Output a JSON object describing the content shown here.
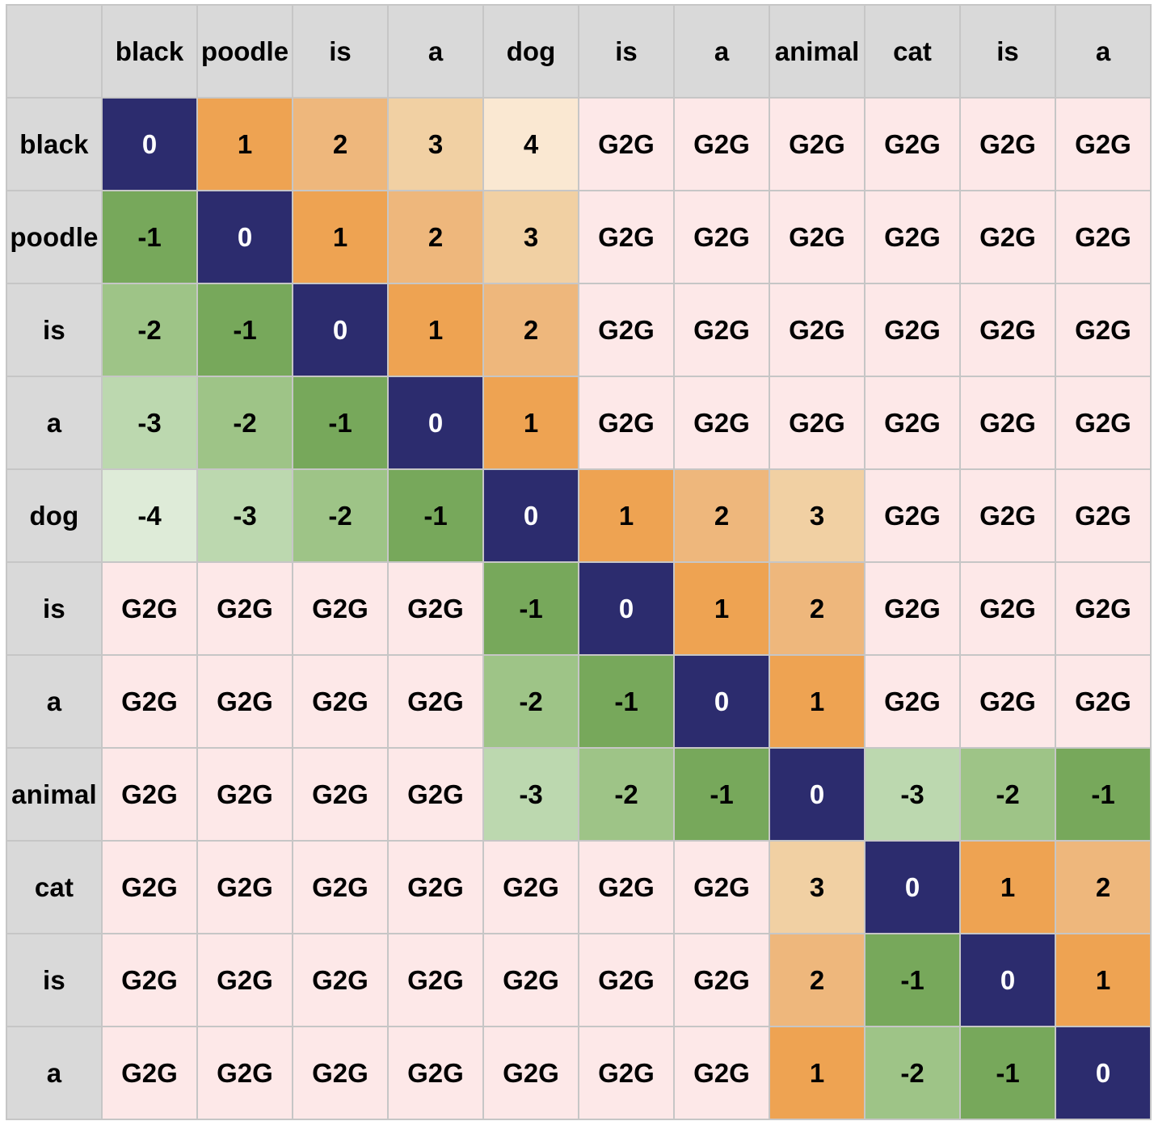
{
  "columns": [
    "black",
    "poodle",
    "is",
    "a",
    "dog",
    "is",
    "a",
    "animal",
    "cat",
    "is",
    "a"
  ],
  "rows": [
    {
      "label": "black",
      "cells": [
        "0",
        "1",
        "2",
        "3",
        "4",
        "G2G",
        "G2G",
        "G2G",
        "G2G",
        "G2G",
        "G2G"
      ]
    },
    {
      "label": "poodle",
      "cells": [
        "-1",
        "0",
        "1",
        "2",
        "3",
        "G2G",
        "G2G",
        "G2G",
        "G2G",
        "G2G",
        "G2G"
      ]
    },
    {
      "label": "is",
      "cells": [
        "-2",
        "-1",
        "0",
        "1",
        "2",
        "G2G",
        "G2G",
        "G2G",
        "G2G",
        "G2G",
        "G2G"
      ]
    },
    {
      "label": "a",
      "cells": [
        "-3",
        "-2",
        "-1",
        "0",
        "1",
        "G2G",
        "G2G",
        "G2G",
        "G2G",
        "G2G",
        "G2G"
      ]
    },
    {
      "label": "dog",
      "cells": [
        "-4",
        "-3",
        "-2",
        "-1",
        "0",
        "1",
        "2",
        "3",
        "G2G",
        "G2G",
        "G2G"
      ]
    },
    {
      "label": "is",
      "cells": [
        "G2G",
        "G2G",
        "G2G",
        "G2G",
        "-1",
        "0",
        "1",
        "2",
        "G2G",
        "G2G",
        "G2G"
      ]
    },
    {
      "label": "a",
      "cells": [
        "G2G",
        "G2G",
        "G2G",
        "G2G",
        "-2",
        "-1",
        "0",
        "1",
        "G2G",
        "G2G",
        "G2G"
      ]
    },
    {
      "label": "animal",
      "cells": [
        "G2G",
        "G2G",
        "G2G",
        "G2G",
        "-3",
        "-2",
        "-1",
        "0",
        "-3",
        "-2",
        "-1"
      ]
    },
    {
      "label": "cat",
      "cells": [
        "G2G",
        "G2G",
        "G2G",
        "G2G",
        "G2G",
        "G2G",
        "G2G",
        "3",
        "0",
        "1",
        "2"
      ]
    },
    {
      "label": "is",
      "cells": [
        "G2G",
        "G2G",
        "G2G",
        "G2G",
        "G2G",
        "G2G",
        "G2G",
        "2",
        "-1",
        "0",
        "1"
      ]
    },
    {
      "label": "a",
      "cells": [
        "G2G",
        "G2G",
        "G2G",
        "G2G",
        "G2G",
        "G2G",
        "G2G",
        "1",
        "-2",
        "-1",
        "0"
      ]
    }
  ],
  "colors": {
    "header_bg": "#d9d9d9",
    "g2g_bg": "#fde8e8",
    "zero_bg": "#2c2c6e",
    "zero_text": "#ffffff",
    "text": "#000000",
    "positive": {
      "1": "#eea352",
      "2": "#eeb77c",
      "3": "#f1d0a3",
      "4": "#fae8d2"
    },
    "negative": {
      "1": "#77a85b",
      "2": "#9ec487",
      "3": "#bcd8af",
      "4": "#deebd8"
    }
  }
}
